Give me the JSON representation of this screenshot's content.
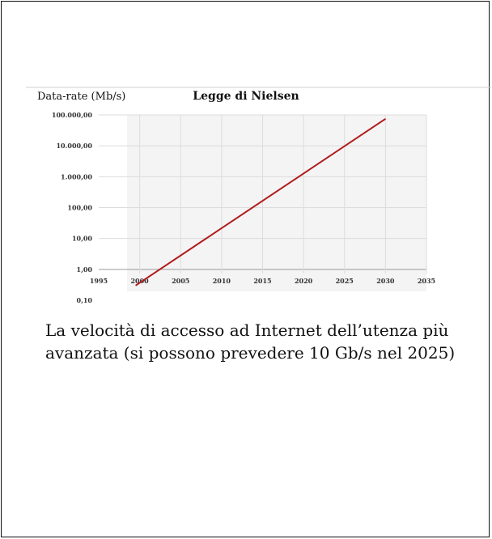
{
  "chart_data": {
    "type": "line",
    "title": "Legge di Nielsen",
    "ylabel": "Data-rate (Mb/s)",
    "xlabel": "",
    "yscale": "log",
    "ylim": [
      0.1,
      100000
    ],
    "xlim": [
      1995,
      2035
    ],
    "y_ticks": [
      100000,
      10000,
      1000,
      100,
      10,
      1,
      0.1
    ],
    "y_tick_labels": [
      "100.000,00",
      "10.000,00",
      "1.000,00",
      "100,00",
      "10,00",
      "1,00",
      "0,10"
    ],
    "x_ticks": [
      1995,
      2000,
      2005,
      2010,
      2015,
      2020,
      2025,
      2030,
      2035
    ],
    "x_tick_labels": [
      "1995",
      "2000",
      "2005",
      "2010",
      "2015",
      "2020",
      "2025",
      "2030",
      "2035"
    ],
    "grid": true,
    "series": [
      {
        "color": "#b01c1c",
        "x": [
          1999.5,
          2030
        ],
        "y": [
          0.3,
          75000
        ]
      }
    ]
  },
  "caption": "La velocità di accesso ad Internet dell’utenza più avanzata (si possono prevedere 10 Gb/s nel 2025)"
}
